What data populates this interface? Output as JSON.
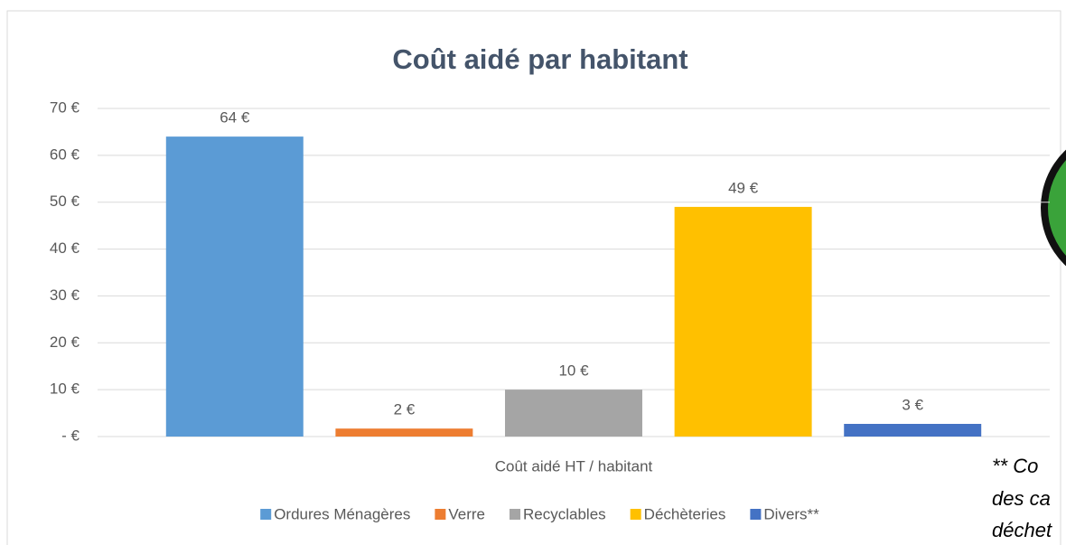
{
  "chart_data": {
    "type": "bar",
    "title": "Coût aidé par habitant",
    "categories": [
      "Coût aidé HT / habitant"
    ],
    "series": [
      {
        "name": "Ordures Ménagères",
        "color": "#5b9bd5",
        "values": [
          64
        ],
        "value_labels": [
          "64 €"
        ]
      },
      {
        "name": "Verre",
        "color": "#ed7d31",
        "values": [
          1.7
        ],
        "value_labels": [
          "2 €"
        ]
      },
      {
        "name": "Recyclables",
        "color": "#a5a5a5",
        "values": [
          10
        ],
        "value_labels": [
          "10 €"
        ]
      },
      {
        "name": "Déchèteries",
        "color": "#ffc000",
        "values": [
          49
        ],
        "value_labels": [
          "49 €"
        ]
      },
      {
        "name": "Divers**",
        "color": "#4472c4",
        "values": [
          2.7
        ],
        "value_labels": [
          "3 €"
        ]
      }
    ],
    "ylim": [
      0,
      70
    ],
    "yticks": [
      {
        "value": 0,
        "label": "-  €"
      },
      {
        "value": 10,
        "label": "10 €"
      },
      {
        "value": 20,
        "label": "20 €"
      },
      {
        "value": 30,
        "label": "30 €"
      },
      {
        "value": 40,
        "label": "40 €"
      },
      {
        "value": 50,
        "label": "50 €"
      },
      {
        "value": 60,
        "label": "60 €"
      },
      {
        "value": 70,
        "label": "70 €"
      }
    ],
    "grid": true,
    "legend": "bottom"
  },
  "side_note": {
    "lines": [
      "** Co",
      "des ca",
      "déchet"
    ]
  }
}
